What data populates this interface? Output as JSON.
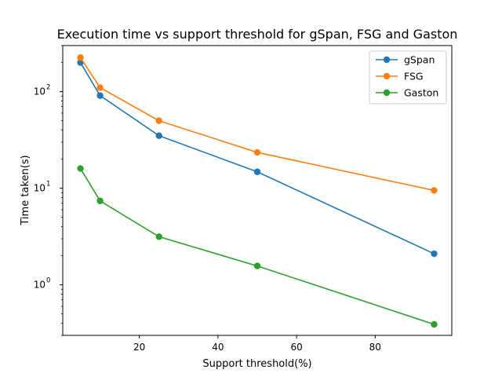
{
  "chart_data": {
    "type": "line",
    "title": "Execution time vs support threshold for gSpan, FSG and Gaston",
    "xlabel": "Support threshold(%)",
    "ylabel": "Time taken(s)",
    "x": [
      5,
      10,
      25,
      50,
      95
    ],
    "series": [
      {
        "name": "gSpan",
        "color": "#1f77b4",
        "values": [
          200,
          91,
          35,
          14.8,
          2.1
        ]
      },
      {
        "name": "FSG",
        "color": "#ff7f0e",
        "values": [
          225,
          110,
          50,
          23.5,
          9.5
        ]
      },
      {
        "name": "Gaston",
        "color": "#2ca02c",
        "values": [
          16,
          7.4,
          3.15,
          1.57,
          0.39
        ]
      }
    ],
    "xlim": [
      0.5,
      99.5
    ],
    "ylim": [
      0.3,
      300
    ],
    "xticks": [
      20,
      40,
      60,
      80
    ],
    "yscale": "log",
    "yticks": [
      {
        "value": 1,
        "base": "10",
        "exp": "0"
      },
      {
        "value": 10,
        "base": "10",
        "exp": "1"
      },
      {
        "value": 100,
        "base": "10",
        "exp": "2"
      }
    ],
    "grid": false,
    "legend_position": "upper-right"
  }
}
